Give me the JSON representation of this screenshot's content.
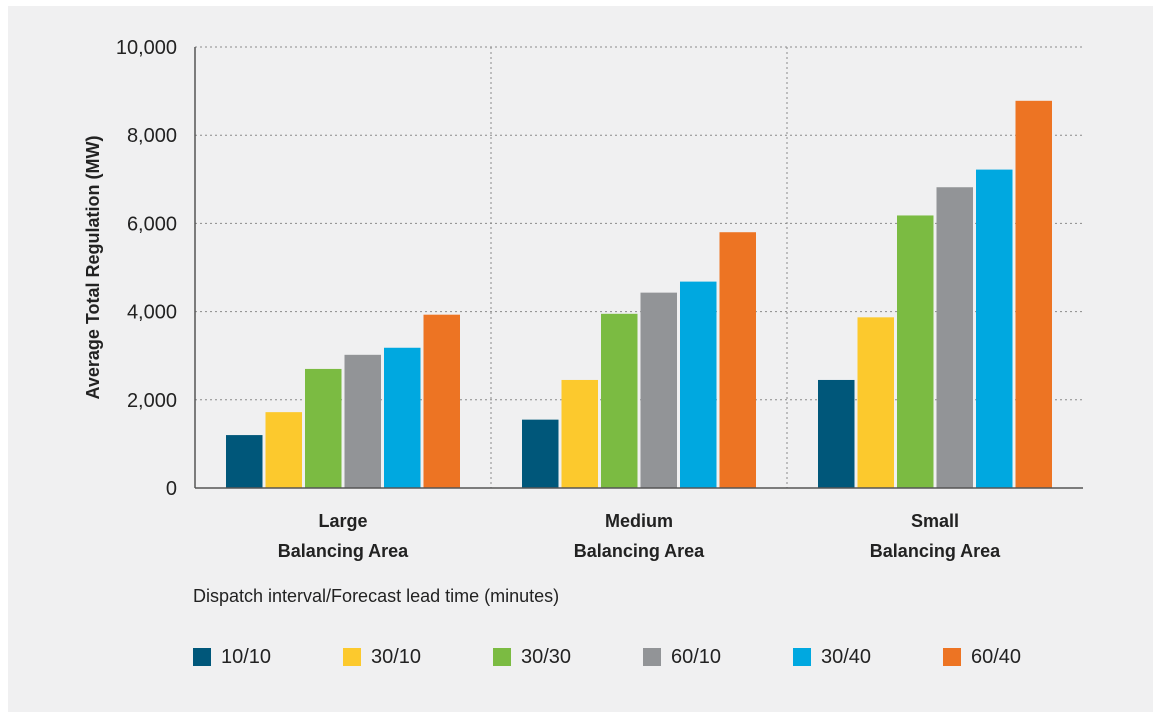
{
  "chart_data": {
    "type": "bar",
    "categories": [
      "Large Balancing Area",
      "Medium Balancing Area",
      "Small Balancing Area"
    ],
    "category_lines": [
      [
        "Large",
        "Balancing Area"
      ],
      [
        "Medium",
        "Balancing Area"
      ],
      [
        "Small",
        "Balancing Area"
      ]
    ],
    "series": [
      {
        "name": "10/10",
        "color": "#00577a",
        "values": [
          1200,
          1550,
          2450
        ]
      },
      {
        "name": "30/10",
        "color": "#fcc92d",
        "values": [
          1720,
          2450,
          3870
        ]
      },
      {
        "name": "30/30",
        "color": "#7bbb42",
        "values": [
          2700,
          3950,
          6180
        ]
      },
      {
        "name": "60/10",
        "color": "#929497",
        "values": [
          3020,
          4430,
          6820
        ]
      },
      {
        "name": "30/40",
        "color": "#00a8e0",
        "values": [
          3180,
          4680,
          7220
        ]
      },
      {
        "name": "60/40",
        "color": "#ed7423",
        "values": [
          3930,
          5800,
          8780
        ]
      }
    ],
    "ylabel": "Average Total Regulation (MW)",
    "xlabel": "",
    "ylim": [
      0,
      10000
    ],
    "yticks": [
      0,
      2000,
      4000,
      6000,
      8000,
      10000
    ],
    "ytick_labels": [
      "0",
      "2,000",
      "4,000",
      "6,000",
      "8,000",
      "10,000"
    ],
    "grid": "dotted",
    "legend_title": "Dispatch interval/Forecast lead time (minutes)",
    "legend_position": "bottom"
  }
}
